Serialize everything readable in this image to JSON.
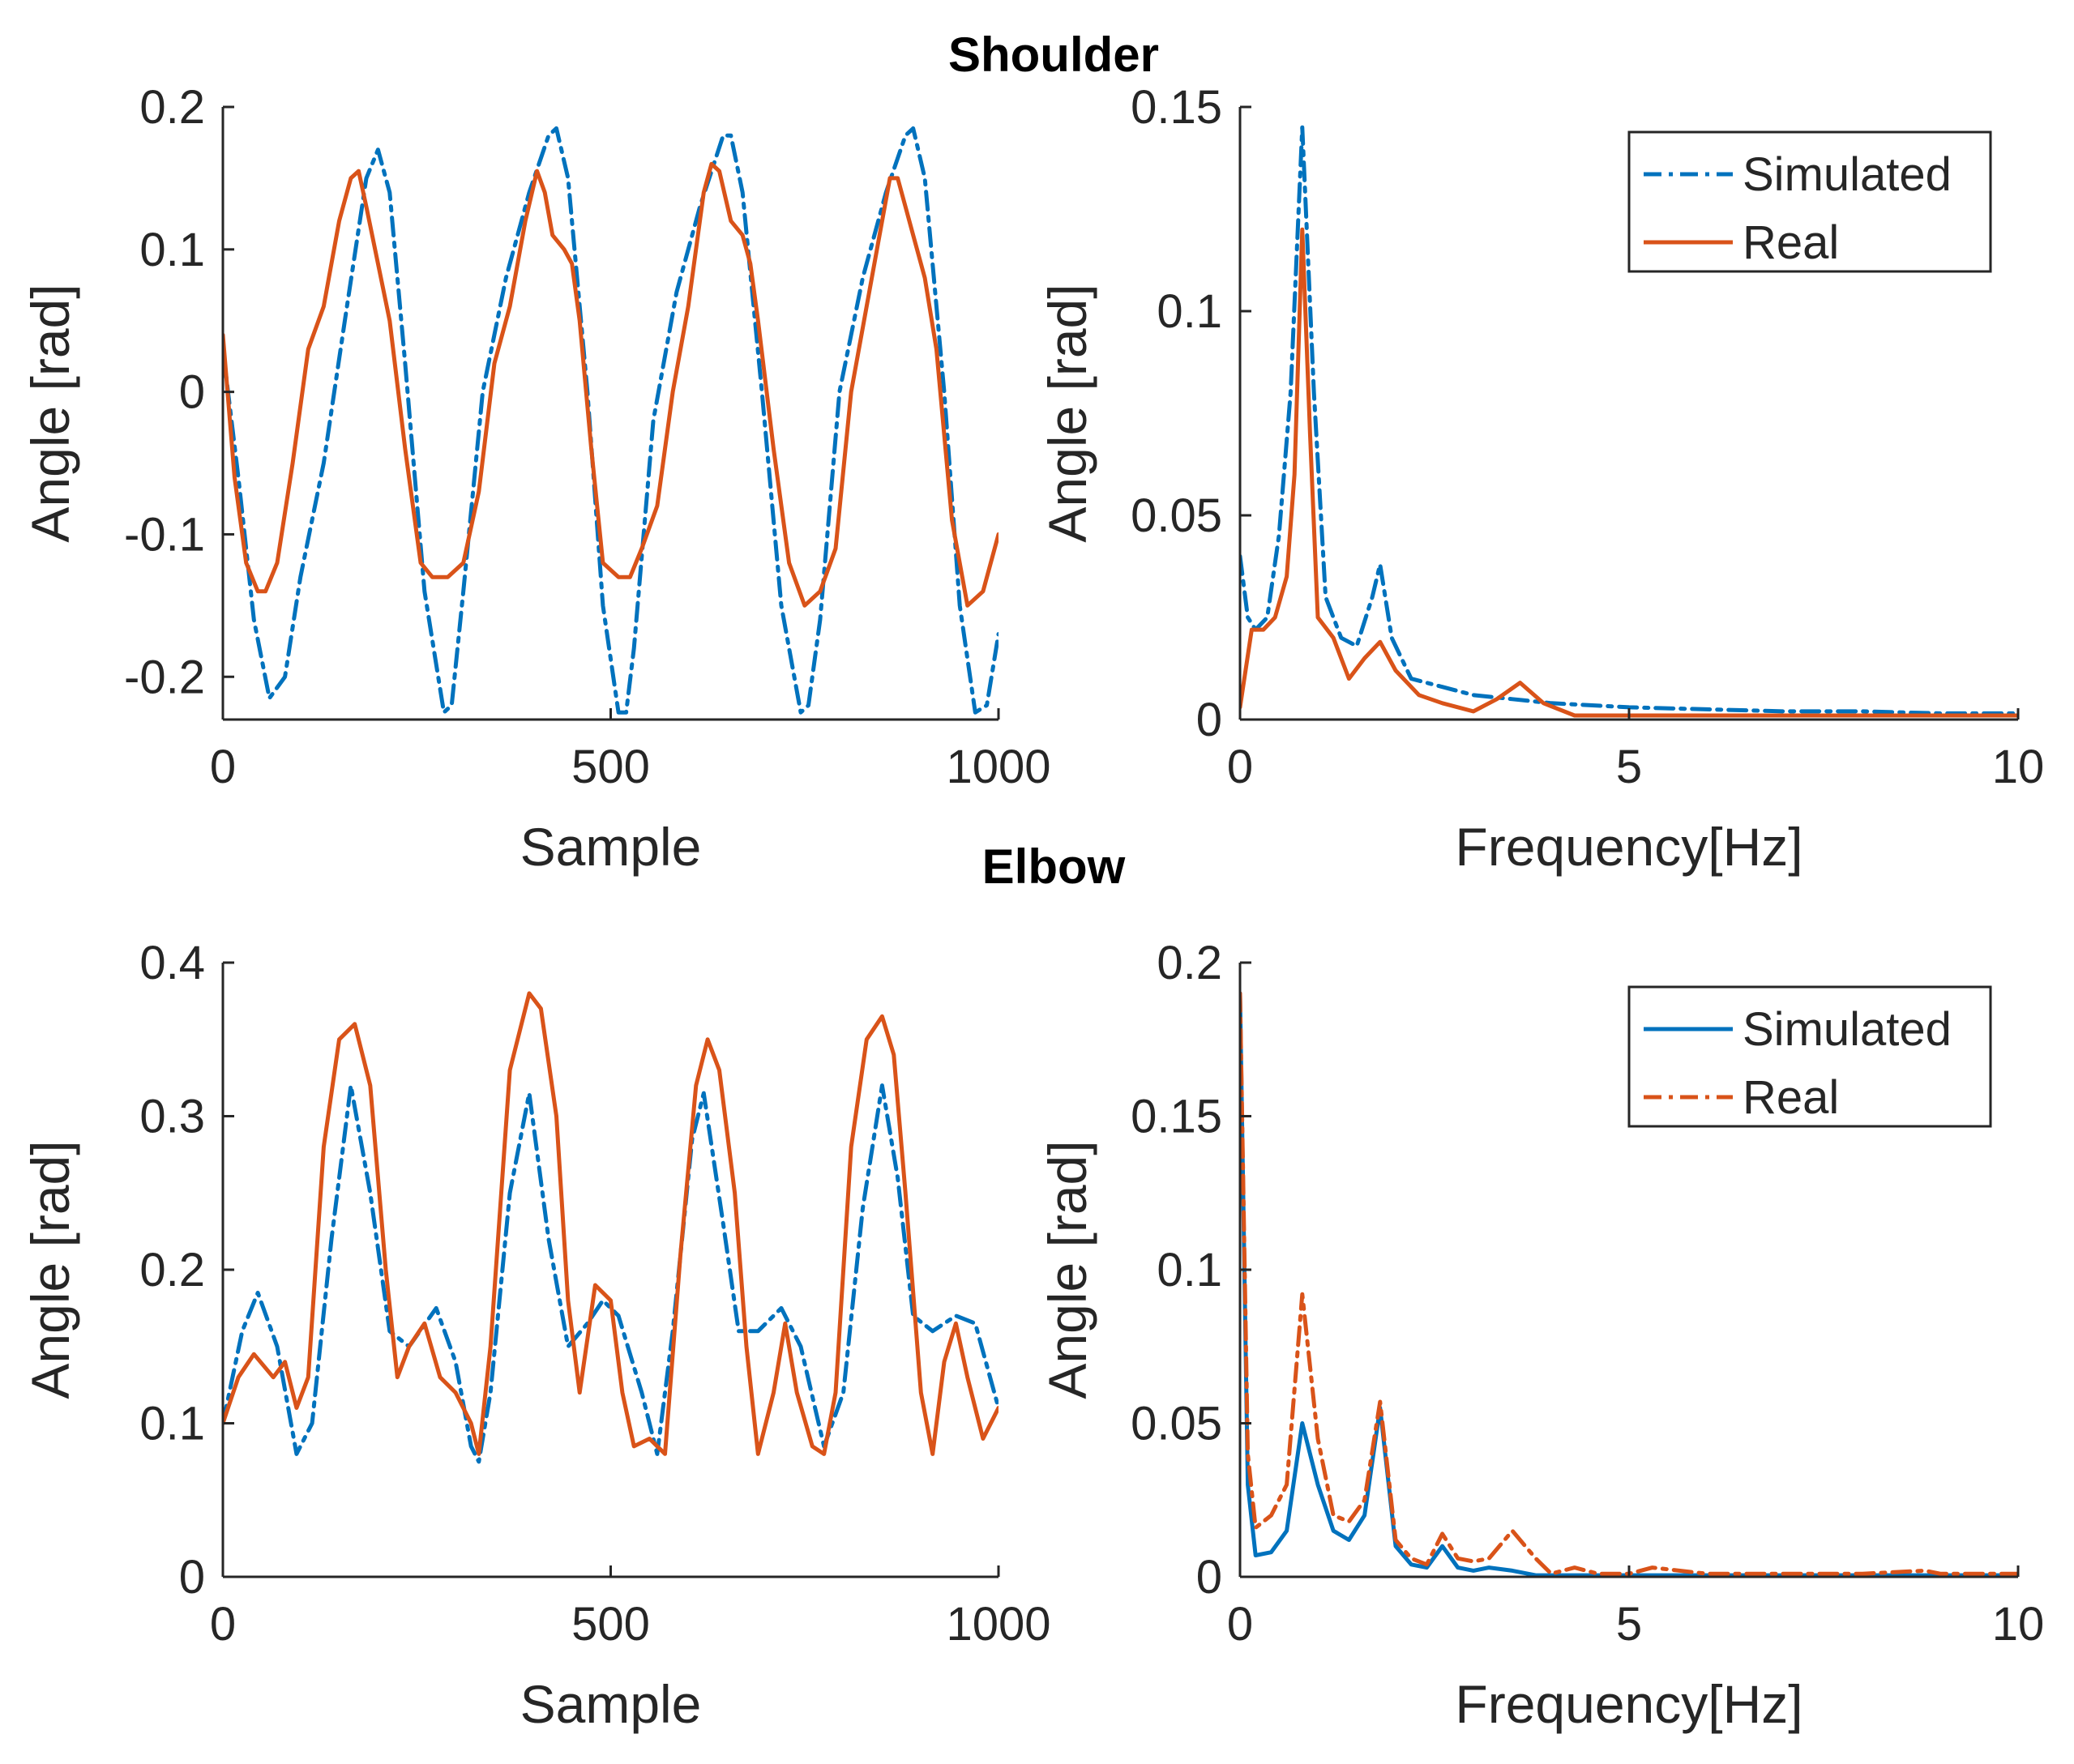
{
  "figure": {
    "section_titles": [
      "Shoulder",
      "Elbow"
    ]
  },
  "chart_data": [
    {
      "id": "shoulder-time",
      "type": "line",
      "title": "Shoulder",
      "xlabel": "Sample",
      "ylabel": "Angle [rad]",
      "xlim": [
        0,
        1000
      ],
      "ylim": [
        -0.23,
        0.2
      ],
      "xticks": [
        0,
        500,
        1000
      ],
      "yticks": [
        -0.2,
        -0.1,
        0,
        0.1,
        0.2
      ],
      "xtick_labels": [
        "0",
        "500",
        "1000"
      ],
      "ytick_labels": [
        "-0.2",
        "-0.1",
        "0",
        "0.1",
        "0.2"
      ],
      "legend": null,
      "series": [
        {
          "name": "Simulated",
          "color": "#0072BD",
          "style": "dashdot",
          "x": [
            0,
            20,
            40,
            60,
            80,
            100,
            130,
            160,
            185,
            200,
            215,
            235,
            260,
            285,
            295,
            310,
            335,
            365,
            395,
            420,
            430,
            445,
            470,
            490,
            510,
            520,
            530,
            555,
            585,
            615,
            645,
            655,
            670,
            695,
            720,
            745,
            755,
            770,
            795,
            825,
            855,
            880,
            890,
            905,
            930,
            950,
            970,
            985,
            1000
          ],
          "y": [
            0.03,
            -0.06,
            -0.16,
            -0.215,
            -0.2,
            -0.13,
            -0.05,
            0.06,
            0.15,
            0.17,
            0.14,
            0.02,
            -0.14,
            -0.225,
            -0.22,
            -0.14,
            0.0,
            0.08,
            0.14,
            0.18,
            0.185,
            0.15,
            0.0,
            -0.15,
            -0.225,
            -0.225,
            -0.18,
            -0.02,
            0.07,
            0.13,
            0.18,
            0.18,
            0.14,
            0.0,
            -0.15,
            -0.225,
            -0.22,
            -0.16,
            0.0,
            0.08,
            0.14,
            0.18,
            0.185,
            0.15,
            0.0,
            -0.15,
            -0.225,
            -0.22,
            -0.17
          ]
        },
        {
          "name": "Real",
          "color": "#D95319",
          "style": "solid",
          "x": [
            0,
            15,
            30,
            45,
            55,
            70,
            90,
            110,
            130,
            150,
            165,
            175,
            185,
            200,
            215,
            235,
            255,
            270,
            290,
            310,
            330,
            350,
            370,
            390,
            405,
            415,
            425,
            440,
            450,
            460,
            475,
            490,
            510,
            525,
            540,
            560,
            580,
            600,
            620,
            630,
            640,
            655,
            670,
            680,
            690,
            710,
            730,
            750,
            770,
            790,
            810,
            830,
            850,
            860,
            870,
            880,
            890,
            905,
            920,
            940,
            960,
            980,
            1000
          ],
          "y": [
            0.04,
            -0.06,
            -0.12,
            -0.14,
            -0.14,
            -0.12,
            -0.05,
            0.03,
            0.06,
            0.12,
            0.15,
            0.155,
            0.13,
            0.09,
            0.05,
            -0.04,
            -0.12,
            -0.13,
            -0.13,
            -0.12,
            -0.07,
            0.02,
            0.06,
            0.12,
            0.155,
            0.14,
            0.11,
            0.1,
            0.09,
            0.05,
            -0.04,
            -0.12,
            -0.13,
            -0.13,
            -0.11,
            -0.08,
            0.0,
            0.06,
            0.14,
            0.16,
            0.155,
            0.12,
            0.11,
            0.09,
            0.05,
            -0.04,
            -0.12,
            -0.15,
            -0.14,
            -0.11,
            0.0,
            0.06,
            0.12,
            0.15,
            0.15,
            0.13,
            0.11,
            0.08,
            0.03,
            -0.09,
            -0.15,
            -0.14,
            -0.1
          ]
        }
      ]
    },
    {
      "id": "shoulder-freq",
      "type": "line",
      "title": "Shoulder",
      "xlabel": "Frequency[Hz]",
      "ylabel": "Angle [rad]",
      "xlim": [
        0,
        10
      ],
      "ylim": [
        0,
        0.15
      ],
      "xticks": [
        0,
        5,
        10
      ],
      "yticks": [
        0,
        0.05,
        0.1,
        0.15
      ],
      "xtick_labels": [
        "0",
        "5",
        "10"
      ],
      "ytick_labels": [
        "0",
        "0.05",
        "0.1",
        "0.15"
      ],
      "legend": {
        "position": "top-right",
        "entries": [
          "Simulated",
          "Real"
        ]
      },
      "series": [
        {
          "name": "Simulated",
          "color": "#0072BD",
          "style": "dashdot",
          "x": [
            0,
            0.1,
            0.2,
            0.35,
            0.5,
            0.65,
            0.8,
            0.95,
            1.1,
            1.3,
            1.5,
            1.7,
            1.8,
            1.95,
            2.2,
            2.6,
            3.0,
            3.5,
            4.0,
            5.0,
            6.0,
            7.0,
            8.0,
            9.0,
            10.0
          ],
          "y": [
            0.04,
            0.025,
            0.022,
            0.025,
            0.045,
            0.08,
            0.145,
            0.08,
            0.03,
            0.02,
            0.018,
            0.03,
            0.038,
            0.02,
            0.01,
            0.008,
            0.006,
            0.005,
            0.004,
            0.003,
            0.0025,
            0.002,
            0.002,
            0.0015,
            0.0015
          ]
        },
        {
          "name": "Real",
          "color": "#D95319",
          "style": "solid",
          "x": [
            0,
            0.15,
            0.3,
            0.45,
            0.6,
            0.7,
            0.8,
            0.9,
            1.0,
            1.2,
            1.4,
            1.6,
            1.8,
            2.0,
            2.3,
            2.6,
            3.0,
            3.3,
            3.6,
            3.9,
            4.3,
            5.0,
            6.0,
            7.0,
            8.0,
            9.0,
            10.0
          ],
          "y": [
            0.003,
            0.022,
            0.022,
            0.025,
            0.035,
            0.06,
            0.12,
            0.07,
            0.025,
            0.02,
            0.01,
            0.015,
            0.019,
            0.012,
            0.006,
            0.004,
            0.002,
            0.005,
            0.009,
            0.004,
            0.001,
            0.001,
            0.001,
            0.001,
            0.001,
            0.001,
            0.001
          ]
        }
      ]
    },
    {
      "id": "elbow-time",
      "type": "line",
      "title": "Elbow",
      "xlabel": "Sample",
      "ylabel": "Angle [rad]",
      "xlim": [
        0,
        1000
      ],
      "ylim": [
        0,
        0.4
      ],
      "xticks": [
        0,
        500,
        1000
      ],
      "yticks": [
        0,
        0.1,
        0.2,
        0.3,
        0.4
      ],
      "xtick_labels": [
        "0",
        "500",
        "1000"
      ],
      "ytick_labels": [
        "0",
        "0.1",
        "0.2",
        "0.3",
        "0.4"
      ],
      "legend": null,
      "series": [
        {
          "name": "Simulated",
          "color": "#0072BD",
          "style": "dashdot",
          "x": [
            0,
            25,
            45,
            70,
            95,
            115,
            140,
            165,
            190,
            215,
            240,
            275,
            300,
            320,
            330,
            345,
            370,
            395,
            420,
            445,
            470,
            490,
            510,
            540,
            560,
            580,
            605,
            620,
            645,
            665,
            690,
            720,
            745,
            775,
            800,
            825,
            850,
            870,
            890,
            915,
            945,
            970,
            1000
          ],
          "y": [
            0.1,
            0.16,
            0.185,
            0.15,
            0.08,
            0.1,
            0.22,
            0.32,
            0.25,
            0.16,
            0.15,
            0.175,
            0.14,
            0.085,
            0.075,
            0.12,
            0.25,
            0.315,
            0.22,
            0.15,
            0.165,
            0.18,
            0.17,
            0.12,
            0.08,
            0.16,
            0.285,
            0.315,
            0.23,
            0.16,
            0.16,
            0.175,
            0.15,
            0.085,
            0.12,
            0.24,
            0.32,
            0.26,
            0.17,
            0.16,
            0.17,
            0.165,
            0.11
          ]
        },
        {
          "name": "Real",
          "color": "#D95319",
          "style": "solid",
          "x": [
            0,
            20,
            40,
            65,
            80,
            95,
            110,
            130,
            150,
            170,
            190,
            210,
            225,
            240,
            260,
            280,
            300,
            320,
            330,
            345,
            370,
            395,
            410,
            430,
            445,
            460,
            480,
            500,
            515,
            530,
            550,
            570,
            590,
            610,
            625,
            640,
            660,
            675,
            690,
            710,
            725,
            740,
            760,
            775,
            790,
            810,
            830,
            850,
            865,
            880,
            900,
            915,
            930,
            945,
            960,
            980,
            1000
          ],
          "y": [
            0.1,
            0.13,
            0.145,
            0.13,
            0.14,
            0.11,
            0.13,
            0.28,
            0.35,
            0.36,
            0.32,
            0.2,
            0.13,
            0.15,
            0.165,
            0.13,
            0.12,
            0.1,
            0.08,
            0.15,
            0.33,
            0.38,
            0.37,
            0.3,
            0.18,
            0.12,
            0.19,
            0.18,
            0.12,
            0.085,
            0.09,
            0.08,
            0.21,
            0.32,
            0.35,
            0.33,
            0.25,
            0.15,
            0.08,
            0.12,
            0.165,
            0.12,
            0.085,
            0.08,
            0.12,
            0.28,
            0.35,
            0.365,
            0.34,
            0.25,
            0.12,
            0.08,
            0.14,
            0.165,
            0.13,
            0.09,
            0.11
          ]
        }
      ]
    },
    {
      "id": "elbow-freq",
      "type": "line",
      "title": "Elbow",
      "xlabel": "Frequency[Hz]",
      "ylabel": "Angle [rad]",
      "xlim": [
        0,
        10
      ],
      "ylim": [
        0,
        0.2
      ],
      "xticks": [
        0,
        5,
        10
      ],
      "yticks": [
        0,
        0.05,
        0.1,
        0.15,
        0.2
      ],
      "xtick_labels": [
        "0",
        "5",
        "10"
      ],
      "ytick_labels": [
        "0",
        "0.05",
        "0.1",
        "0.15",
        "0.2"
      ],
      "legend": {
        "position": "top-right",
        "entries": [
          "Simulated",
          "Real"
        ]
      },
      "series": [
        {
          "name": "Simulated",
          "color": "#0072BD",
          "style": "solid",
          "x": [
            0,
            0.1,
            0.2,
            0.4,
            0.6,
            0.8,
            1.0,
            1.2,
            1.4,
            1.6,
            1.8,
            2.0,
            2.2,
            2.4,
            2.6,
            2.8,
            3.0,
            3.2,
            3.5,
            3.8,
            4.0,
            5.0,
            6.0,
            7.0,
            8.0,
            9.0,
            10.0
          ],
          "y": [
            0.19,
            0.03,
            0.007,
            0.008,
            0.015,
            0.05,
            0.03,
            0.015,
            0.012,
            0.02,
            0.055,
            0.01,
            0.004,
            0.003,
            0.01,
            0.003,
            0.002,
            0.003,
            0.002,
            0.0005,
            0.0005,
            0.0005,
            0.0005,
            0.0005,
            0.0005,
            0.0005,
            0.0005
          ]
        },
        {
          "name": "Real",
          "color": "#D95319",
          "style": "dashdot",
          "x": [
            0,
            0.1,
            0.2,
            0.4,
            0.6,
            0.8,
            1.0,
            1.2,
            1.4,
            1.6,
            1.8,
            2.0,
            2.2,
            2.4,
            2.6,
            2.8,
            3.0,
            3.2,
            3.5,
            3.8,
            4.0,
            4.3,
            4.6,
            5.0,
            5.3,
            6.0,
            7.0,
            8.0,
            8.8,
            9.0,
            10.0
          ],
          "y": [
            0.19,
            0.04,
            0.016,
            0.02,
            0.03,
            0.092,
            0.045,
            0.02,
            0.018,
            0.025,
            0.057,
            0.012,
            0.006,
            0.004,
            0.014,
            0.006,
            0.005,
            0.006,
            0.015,
            0.006,
            0.001,
            0.003,
            0.001,
            0.001,
            0.003,
            0.001,
            0.001,
            0.001,
            0.002,
            0.001,
            0.001
          ]
        }
      ]
    }
  ]
}
